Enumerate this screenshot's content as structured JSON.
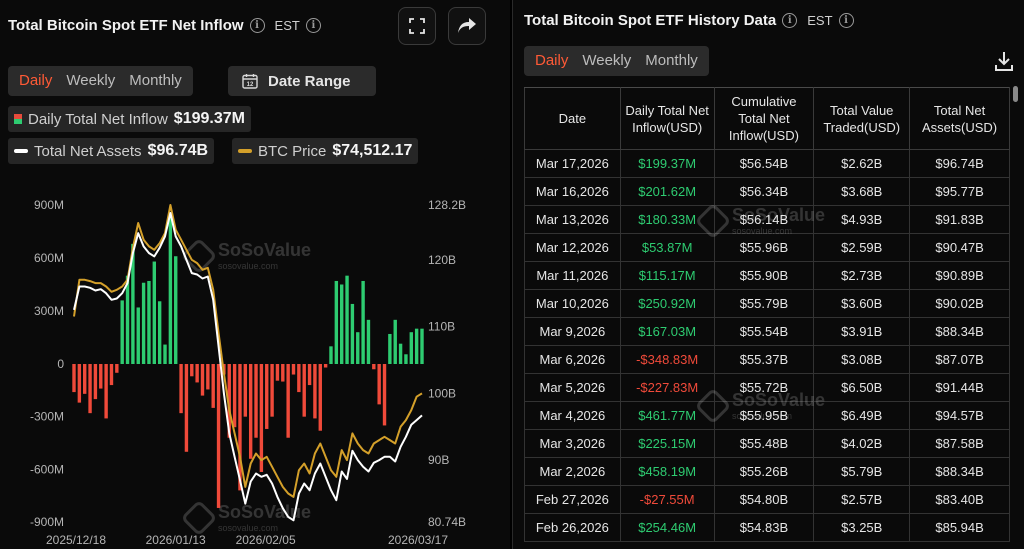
{
  "left": {
    "title": "Total Bitcoin Spot ETF Net Inflow",
    "timezone": "EST",
    "tabs": [
      "Daily",
      "Weekly",
      "Monthly"
    ],
    "active_tab": "Daily",
    "date_range_label": "Date Range",
    "stats": {
      "inflow_label": "Daily Total Net Inflow",
      "inflow_value": "$199.37M",
      "assets_label": "Total Net Assets",
      "assets_value": "$96.74B",
      "btc_label": "BTC Price",
      "btc_value": "$74,512.17"
    },
    "watermark": "SoSoValue",
    "watermark_sub": "sosovalue.com"
  },
  "right": {
    "title": "Total Bitcoin Spot ETF History Data",
    "timezone": "EST",
    "tabs": [
      "Daily",
      "Weekly",
      "Monthly"
    ],
    "active_tab": "Daily",
    "columns": [
      "Date",
      "Daily Total Net Inflow(USD)",
      "Cumulative Total Net Inflow(USD)",
      "Total Value Traded(USD)",
      "Total Net Assets(USD)"
    ],
    "rows": [
      [
        "Mar 17,2026",
        "$199.37M",
        "$56.54B",
        "$2.62B",
        "$96.74B"
      ],
      [
        "Mar 16,2026",
        "$201.62M",
        "$56.34B",
        "$3.68B",
        "$95.77B"
      ],
      [
        "Mar 13,2026",
        "$180.33M",
        "$56.14B",
        "$4.93B",
        "$91.83B"
      ],
      [
        "Mar 12,2026",
        "$53.87M",
        "$55.96B",
        "$2.59B",
        "$90.47B"
      ],
      [
        "Mar 11,2026",
        "$115.17M",
        "$55.90B",
        "$2.73B",
        "$90.89B"
      ],
      [
        "Mar 10,2026",
        "$250.92M",
        "$55.79B",
        "$3.60B",
        "$90.02B"
      ],
      [
        "Mar 9,2026",
        "$167.03M",
        "$55.54B",
        "$3.91B",
        "$88.34B"
      ],
      [
        "Mar 6,2026",
        "-$348.83M",
        "$55.37B",
        "$3.08B",
        "$87.07B"
      ],
      [
        "Mar 5,2026",
        "-$227.83M",
        "$55.72B",
        "$6.50B",
        "$91.44B"
      ],
      [
        "Mar 4,2026",
        "$461.77M",
        "$55.95B",
        "$6.49B",
        "$94.57B"
      ],
      [
        "Mar 3,2026",
        "$225.15M",
        "$55.48B",
        "$4.02B",
        "$87.58B"
      ],
      [
        "Mar 2,2026",
        "$458.19M",
        "$55.26B",
        "$5.79B",
        "$88.34B"
      ],
      [
        "Feb 27,2026",
        "-$27.55M",
        "$54.80B",
        "$2.57B",
        "$83.40B"
      ],
      [
        "Feb 26,2026",
        "$254.46M",
        "$54.83B",
        "$3.25B",
        "$85.94B"
      ]
    ]
  },
  "colors": {
    "positive": "#2ecc71",
    "negative": "#f04a3a",
    "assets_line": "#ffffff",
    "btc_line": "#d4a02a",
    "accent": "#ff5a36"
  },
  "chart_data": {
    "type": "bar",
    "title": "Total Bitcoin Spot ETF Net Inflow",
    "y_left_ticks": [
      "900M",
      "600M",
      "300M",
      "0",
      "-300M",
      "-600M",
      "-900M"
    ],
    "y_left_range": [
      -900,
      900
    ],
    "y_left_unit": "M USD",
    "y_right_ticks": [
      "128.2B",
      "120B",
      "110B",
      "100B",
      "90B",
      "80.74B"
    ],
    "y_right_range": [
      80.74,
      128.2
    ],
    "x_ticks": [
      "2025/12/18",
      "2026/01/13",
      "2026/02/05",
      "2026/03/17"
    ],
    "x_range": [
      "2025/12/18",
      "2026/03/17"
    ],
    "series": [
      {
        "name": "Daily Total Net Inflow",
        "type": "bar",
        "axis": "left",
        "values": [
          -160,
          -220,
          -170,
          -280,
          -200,
          -140,
          -310,
          -120,
          -50,
          360,
          500,
          680,
          320,
          460,
          470,
          580,
          355,
          110,
          840,
          610,
          -280,
          -500,
          -70,
          -105,
          -180,
          -145,
          -250,
          -820,
          -60,
          -420,
          -360,
          -720,
          -300,
          -540,
          -420,
          -615,
          -370,
          -300,
          -95,
          -100,
          -420,
          -60,
          -160,
          -300,
          -120,
          -310,
          -380,
          -20,
          100,
          470,
          450,
          500,
          340,
          180,
          470,
          250,
          -30,
          -230,
          -350,
          170,
          250,
          115,
          55,
          180,
          200,
          200
        ]
      },
      {
        "name": "Total Net Assets",
        "type": "line",
        "axis": "right",
        "values": [
          112.5,
          116.0,
          116.0,
          115.8,
          115.4,
          115.6,
          115.0,
          114.0,
          114.2,
          115.0,
          116.5,
          121.0,
          124.0,
          122.0,
          121.0,
          120.5,
          121.8,
          123.5,
          127.0,
          123.5,
          122.0,
          120.0,
          118.0,
          117.8,
          117.2,
          117.5,
          114.0,
          107.0,
          100.0,
          94.0,
          90.5,
          87.0,
          83.5,
          86.8,
          88.0,
          87.5,
          87.8,
          86.5,
          84.5,
          82.8,
          81.5,
          81.0,
          85.0,
          86.5,
          85.5,
          88.0,
          89.5,
          87.5,
          85.5,
          84.0,
          88.3,
          87.2,
          91.4,
          90.0,
          89.0,
          88.3,
          89.6,
          90.0,
          90.5,
          90.5,
          89.8,
          92.0,
          93.5,
          95.3,
          96.0,
          96.7
        ]
      },
      {
        "name": "BTC Price",
        "type": "line",
        "axis": "right",
        "values": [
          111.5,
          117.0,
          117.0,
          116.8,
          116.5,
          116.5,
          116.0,
          115.2,
          115.5,
          116.0,
          117.0,
          121.8,
          125.5,
          123.0,
          122.0,
          121.5,
          122.5,
          124.0,
          128.2,
          124.5,
          123.0,
          121.5,
          120.0,
          119.5,
          118.5,
          118.8,
          115.5,
          109.0,
          103.0,
          97.5,
          94.0,
          90.5,
          86.0,
          89.5,
          91.0,
          90.0,
          90.5,
          89.0,
          87.5,
          86.0,
          85.0,
          84.5,
          88.5,
          89.5,
          88.0,
          91.0,
          92.5,
          90.5,
          88.5,
          87.5,
          91.5,
          90.0,
          94.0,
          92.5,
          91.5,
          91.0,
          92.5,
          93.0,
          93.5,
          93.0,
          92.5,
          95.0,
          96.0,
          97.5,
          99.5,
          100.0
        ]
      }
    ],
    "grid": false,
    "legend": "top-left"
  }
}
